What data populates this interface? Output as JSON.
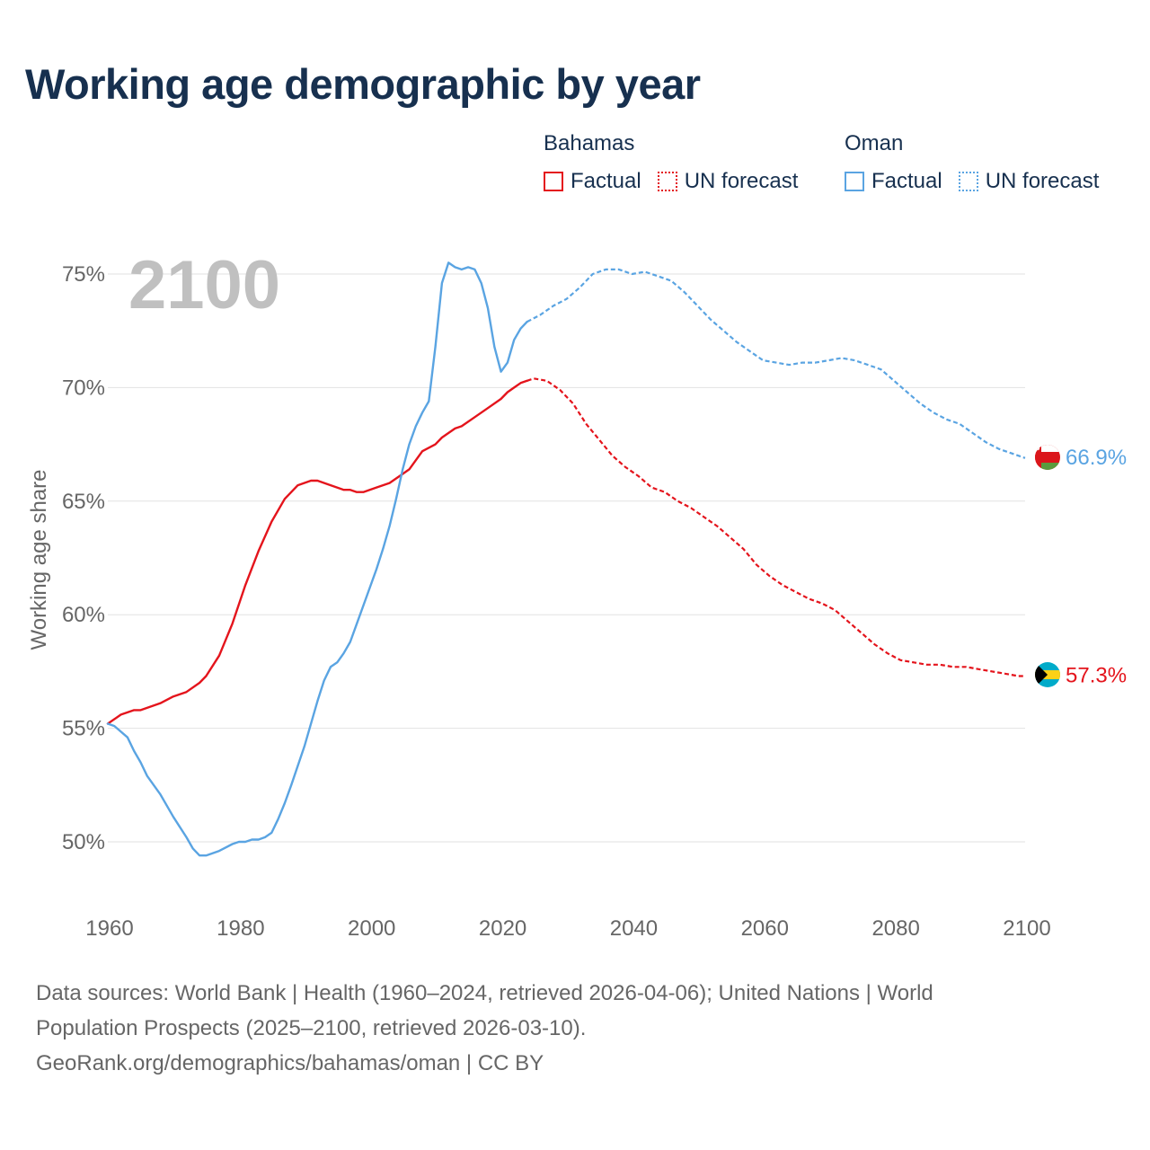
{
  "colors": {
    "bahamas": "#e4141c",
    "oman": "#5aa4e2",
    "grid": "#e2e2e2",
    "axis_text": "#666666",
    "year_watermark": "#c0c0c0"
  },
  "legend": {
    "groups": [
      {
        "country": "Bahamas",
        "factual": "Factual",
        "forecast": "UN forecast",
        "color": "#e4141c"
      },
      {
        "country": "Oman",
        "factual": "Factual",
        "forecast": "UN forecast",
        "color": "#5aa4e2"
      }
    ]
  },
  "footer": {
    "line1": "Data sources: World Bank | Health (1960–2024, retrieved 2026-04-06); United Nations | World",
    "line2": "Population Prospects (2025–2100, retrieved 2026-03-10).",
    "line3": "GeoRank.org/demographics/bahamas/oman | CC BY"
  },
  "chart_data": {
    "type": "line",
    "title": "Working age demographic by year",
    "year_label": "2100",
    "ylabel": "Working age share",
    "xlabel": "",
    "xlim": [
      1960,
      2100
    ],
    "ylim": [
      48,
      76
    ],
    "xticks": [
      1960,
      1980,
      2000,
      2020,
      2040,
      2060,
      2080,
      2100
    ],
    "x_tick_labels": [
      "1960",
      "1980",
      "2000",
      "2020",
      "2040",
      "2060",
      "2080",
      "2100"
    ],
    "yticks": [
      50,
      55,
      60,
      65,
      70,
      75
    ],
    "y_tick_labels": [
      "50%",
      "55%",
      "60%",
      "65%",
      "70%",
      "75%"
    ],
    "series": [
      {
        "name": "Bahamas",
        "color": "#e4141c",
        "end_label": "57.3%",
        "factual": [
          [
            1960,
            55.2
          ],
          [
            1962,
            55.6
          ],
          [
            1964,
            55.8
          ],
          [
            1965,
            55.8
          ],
          [
            1968,
            56.1
          ],
          [
            1970,
            56.4
          ],
          [
            1972,
            56.6
          ],
          [
            1974,
            57.0
          ],
          [
            1975,
            57.3
          ],
          [
            1977,
            58.2
          ],
          [
            1979,
            59.6
          ],
          [
            1981,
            61.3
          ],
          [
            1983,
            62.8
          ],
          [
            1985,
            64.1
          ],
          [
            1987,
            65.1
          ],
          [
            1989,
            65.7
          ],
          [
            1991,
            65.9
          ],
          [
            1992,
            65.9
          ],
          [
            1994,
            65.7
          ],
          [
            1996,
            65.5
          ],
          [
            1997,
            65.5
          ],
          [
            1998,
            65.4
          ],
          [
            1999,
            65.4
          ],
          [
            2001,
            65.6
          ],
          [
            2003,
            65.8
          ],
          [
            2005,
            66.2
          ],
          [
            2006,
            66.4
          ],
          [
            2007,
            66.8
          ],
          [
            2008,
            67.2
          ],
          [
            2010,
            67.5
          ],
          [
            2011,
            67.8
          ],
          [
            2013,
            68.2
          ],
          [
            2014,
            68.3
          ],
          [
            2016,
            68.7
          ],
          [
            2018,
            69.1
          ],
          [
            2020,
            69.5
          ],
          [
            2021,
            69.8
          ],
          [
            2022,
            70.0
          ],
          [
            2023,
            70.2
          ],
          [
            2024,
            70.3
          ]
        ],
        "forecast": [
          [
            2024,
            70.3
          ],
          [
            2025,
            70.4
          ],
          [
            2027,
            70.3
          ],
          [
            2029,
            69.9
          ],
          [
            2031,
            69.3
          ],
          [
            2033,
            68.4
          ],
          [
            2035,
            67.7
          ],
          [
            2037,
            67.0
          ],
          [
            2039,
            66.5
          ],
          [
            2041,
            66.1
          ],
          [
            2043,
            65.6
          ],
          [
            2045,
            65.4
          ],
          [
            2047,
            65.0
          ],
          [
            2049,
            64.7
          ],
          [
            2051,
            64.3
          ],
          [
            2053,
            63.9
          ],
          [
            2055,
            63.4
          ],
          [
            2057,
            62.9
          ],
          [
            2059,
            62.2
          ],
          [
            2061,
            61.7
          ],
          [
            2063,
            61.3
          ],
          [
            2065,
            61.0
          ],
          [
            2067,
            60.7
          ],
          [
            2069,
            60.5
          ],
          [
            2071,
            60.2
          ],
          [
            2073,
            59.7
          ],
          [
            2075,
            59.2
          ],
          [
            2077,
            58.7
          ],
          [
            2079,
            58.3
          ],
          [
            2081,
            58.0
          ],
          [
            2083,
            57.9
          ],
          [
            2085,
            57.8
          ],
          [
            2087,
            57.8
          ],
          [
            2089,
            57.7
          ],
          [
            2091,
            57.7
          ],
          [
            2093,
            57.6
          ],
          [
            2095,
            57.5
          ],
          [
            2097,
            57.4
          ],
          [
            2099,
            57.3
          ],
          [
            2100,
            57.3
          ]
        ]
      },
      {
        "name": "Oman",
        "color": "#5aa4e2",
        "end_label": "66.9%",
        "factual": [
          [
            1960,
            55.2
          ],
          [
            1961,
            55.1
          ],
          [
            1963,
            54.6
          ],
          [
            1964,
            54.0
          ],
          [
            1965,
            53.5
          ],
          [
            1966,
            52.9
          ],
          [
            1968,
            52.1
          ],
          [
            1970,
            51.1
          ],
          [
            1972,
            50.2
          ],
          [
            1973,
            49.7
          ],
          [
            1974,
            49.4
          ],
          [
            1975,
            49.4
          ],
          [
            1977,
            49.6
          ],
          [
            1979,
            49.9
          ],
          [
            1980,
            50.0
          ],
          [
            1981,
            50.0
          ],
          [
            1982,
            50.1
          ],
          [
            1983,
            50.1
          ],
          [
            1984,
            50.2
          ],
          [
            1985,
            50.4
          ],
          [
            1986,
            51.0
          ],
          [
            1987,
            51.7
          ],
          [
            1988,
            52.5
          ],
          [
            1990,
            54.2
          ],
          [
            1992,
            56.2
          ],
          [
            1993,
            57.1
          ],
          [
            1994,
            57.7
          ],
          [
            1995,
            57.9
          ],
          [
            1996,
            58.3
          ],
          [
            1997,
            58.8
          ],
          [
            1998,
            59.6
          ],
          [
            1999,
            60.4
          ],
          [
            2000,
            61.2
          ],
          [
            2001,
            62.0
          ],
          [
            2002,
            62.9
          ],
          [
            2003,
            63.9
          ],
          [
            2004,
            65.1
          ],
          [
            2005,
            66.4
          ],
          [
            2006,
            67.5
          ],
          [
            2007,
            68.3
          ],
          [
            2008,
            68.9
          ],
          [
            2009,
            69.4
          ],
          [
            2010,
            71.8
          ],
          [
            2011,
            74.6
          ],
          [
            2012,
            75.5
          ],
          [
            2013,
            75.3
          ],
          [
            2014,
            75.2
          ],
          [
            2015,
            75.3
          ],
          [
            2016,
            75.2
          ],
          [
            2017,
            74.6
          ],
          [
            2018,
            73.5
          ],
          [
            2019,
            71.8
          ],
          [
            2020,
            70.7
          ],
          [
            2021,
            71.1
          ],
          [
            2022,
            72.1
          ],
          [
            2023,
            72.6
          ],
          [
            2024,
            72.9
          ]
        ],
        "forecast": [
          [
            2024,
            72.9
          ],
          [
            2026,
            73.2
          ],
          [
            2028,
            73.6
          ],
          [
            2030,
            73.9
          ],
          [
            2032,
            74.4
          ],
          [
            2034,
            75.0
          ],
          [
            2036,
            75.2
          ],
          [
            2038,
            75.2
          ],
          [
            2040,
            75.0
          ],
          [
            2042,
            75.1
          ],
          [
            2044,
            74.9
          ],
          [
            2046,
            74.7
          ],
          [
            2048,
            74.2
          ],
          [
            2050,
            73.6
          ],
          [
            2052,
            73.0
          ],
          [
            2054,
            72.5
          ],
          [
            2056,
            72.0
          ],
          [
            2058,
            71.6
          ],
          [
            2060,
            71.2
          ],
          [
            2062,
            71.1
          ],
          [
            2064,
            71.0
          ],
          [
            2066,
            71.1
          ],
          [
            2068,
            71.1
          ],
          [
            2070,
            71.2
          ],
          [
            2072,
            71.3
          ],
          [
            2074,
            71.2
          ],
          [
            2076,
            71.0
          ],
          [
            2078,
            70.8
          ],
          [
            2080,
            70.3
          ],
          [
            2082,
            69.8
          ],
          [
            2084,
            69.3
          ],
          [
            2086,
            68.9
          ],
          [
            2088,
            68.6
          ],
          [
            2090,
            68.4
          ],
          [
            2092,
            68.0
          ],
          [
            2094,
            67.6
          ],
          [
            2096,
            67.3
          ],
          [
            2098,
            67.1
          ],
          [
            2100,
            66.9
          ]
        ]
      }
    ]
  }
}
